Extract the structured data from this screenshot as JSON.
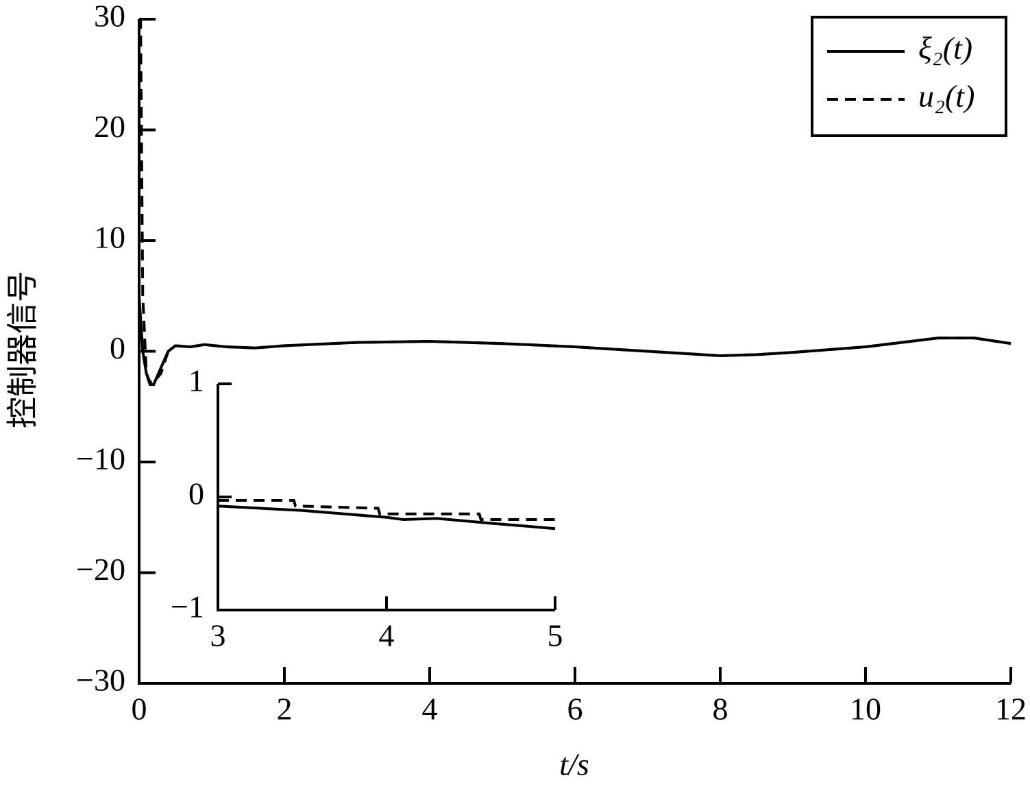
{
  "chart_data": [
    {
      "type": "line",
      "xlabel": "t/s",
      "ylabel": "控制器信号",
      "xlim": [
        0,
        12
      ],
      "ylim": [
        -30,
        30
      ],
      "xticks": [
        0,
        2,
        4,
        6,
        8,
        10,
        12
      ],
      "yticks": [
        {
          "value": -30,
          "label": "−30"
        },
        {
          "value": -20,
          "label": "−20"
        },
        {
          "value": -10,
          "label": "−10"
        },
        0,
        10,
        20,
        30
      ],
      "legend": "upper right",
      "series": [
        {
          "name": "ξ₂(t)",
          "color": "#000000",
          "linestyle": "solid",
          "x": [
            0,
            0.05,
            0.1,
            0.15,
            0.2,
            0.3,
            0.4,
            0.5,
            0.7,
            0.9,
            1.2,
            1.6,
            2,
            3,
            4,
            5,
            6,
            7,
            8,
            8.5,
            9,
            10,
            11,
            11.5,
            12
          ],
          "values": [
            5,
            0,
            -2,
            -3,
            -3,
            -1.5,
            0,
            0.5,
            0.4,
            0.6,
            0.4,
            0.3,
            0.5,
            0.8,
            0.9,
            0.7,
            0.4,
            0,
            -0.4,
            -0.3,
            -0.1,
            0.4,
            1.2,
            1.2,
            0.7
          ]
        },
        {
          "name": "u₂(t)",
          "color": "#000000",
          "linestyle": "dashed",
          "x": [
            0,
            0.02,
            0.05,
            0.1,
            0.15,
            0.2,
            0.3,
            0.4,
            0.5,
            0.7,
            0.9,
            1.2,
            1.6,
            2,
            3,
            4,
            5,
            6,
            7,
            8,
            8.5,
            9,
            10,
            11,
            11.5,
            12
          ],
          "values": [
            30,
            30,
            5,
            -2,
            -2.8,
            -2.8,
            -2,
            0,
            0.5,
            0.4,
            0.6,
            0.4,
            0.3,
            0.5,
            0.8,
            0.9,
            0.7,
            0.4,
            0,
            -0.4,
            -0.3,
            -0.1,
            0.4,
            1.2,
            1.2,
            0.7
          ]
        }
      ]
    },
    {
      "type": "line",
      "xlim": [
        3,
        5
      ],
      "ylim": [
        -1,
        1
      ],
      "xticks": [
        3,
        4,
        5
      ],
      "yticks": [
        {
          "value": -1,
          "label": "−1"
        },
        0,
        1
      ],
      "series": [
        {
          "color": "#000000",
          "linestyle": "solid",
          "x": [
            3,
            3.5,
            4,
            4.1,
            4.3,
            4.6,
            5
          ],
          "values": [
            -0.08,
            -0.12,
            -0.18,
            -0.2,
            -0.19,
            -0.23,
            -0.28
          ]
        },
        {
          "color": "#000000",
          "linestyle": "dashed",
          "x": [
            3,
            3.45,
            3.46,
            3.95,
            3.96,
            4.55,
            4.56,
            5
          ],
          "values": [
            -0.03,
            -0.03,
            -0.08,
            -0.1,
            -0.15,
            -0.15,
            -0.2,
            -0.2
          ]
        }
      ]
    }
  ]
}
